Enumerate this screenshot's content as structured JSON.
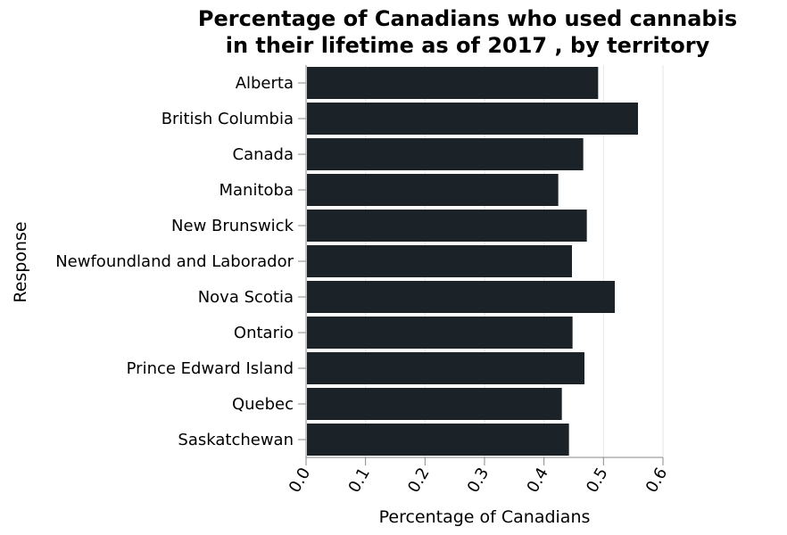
{
  "chart_data": {
    "type": "bar",
    "orientation": "horizontal",
    "title": "Percentage of Canadians who used cannabis in their lifetime as of 2017 , by territory",
    "title_lines": [
      "Percentage of Canadians who used cannabis",
      "in their lifetime as of 2017 , by territory"
    ],
    "xlabel": "Percentage of Canadians",
    "ylabel": "Response",
    "categories": [
      "Alberta",
      "British Columbia",
      "Canada",
      "Manitoba",
      "New Brunswick",
      "Newfoundland and Laborador",
      "Nova Scotia",
      "Ontario",
      "Prince Edward Island",
      "Quebec",
      "Saskatchewan"
    ],
    "values": [
      0.491,
      0.558,
      0.466,
      0.424,
      0.472,
      0.447,
      0.519,
      0.448,
      0.468,
      0.43,
      0.442
    ],
    "xlim": [
      0,
      0.6
    ],
    "xticks": [
      "0.0",
      "0.1",
      "0.2",
      "0.3",
      "0.4",
      "0.5",
      "0.6"
    ],
    "grid": true,
    "bar_color": "#1b2328"
  }
}
